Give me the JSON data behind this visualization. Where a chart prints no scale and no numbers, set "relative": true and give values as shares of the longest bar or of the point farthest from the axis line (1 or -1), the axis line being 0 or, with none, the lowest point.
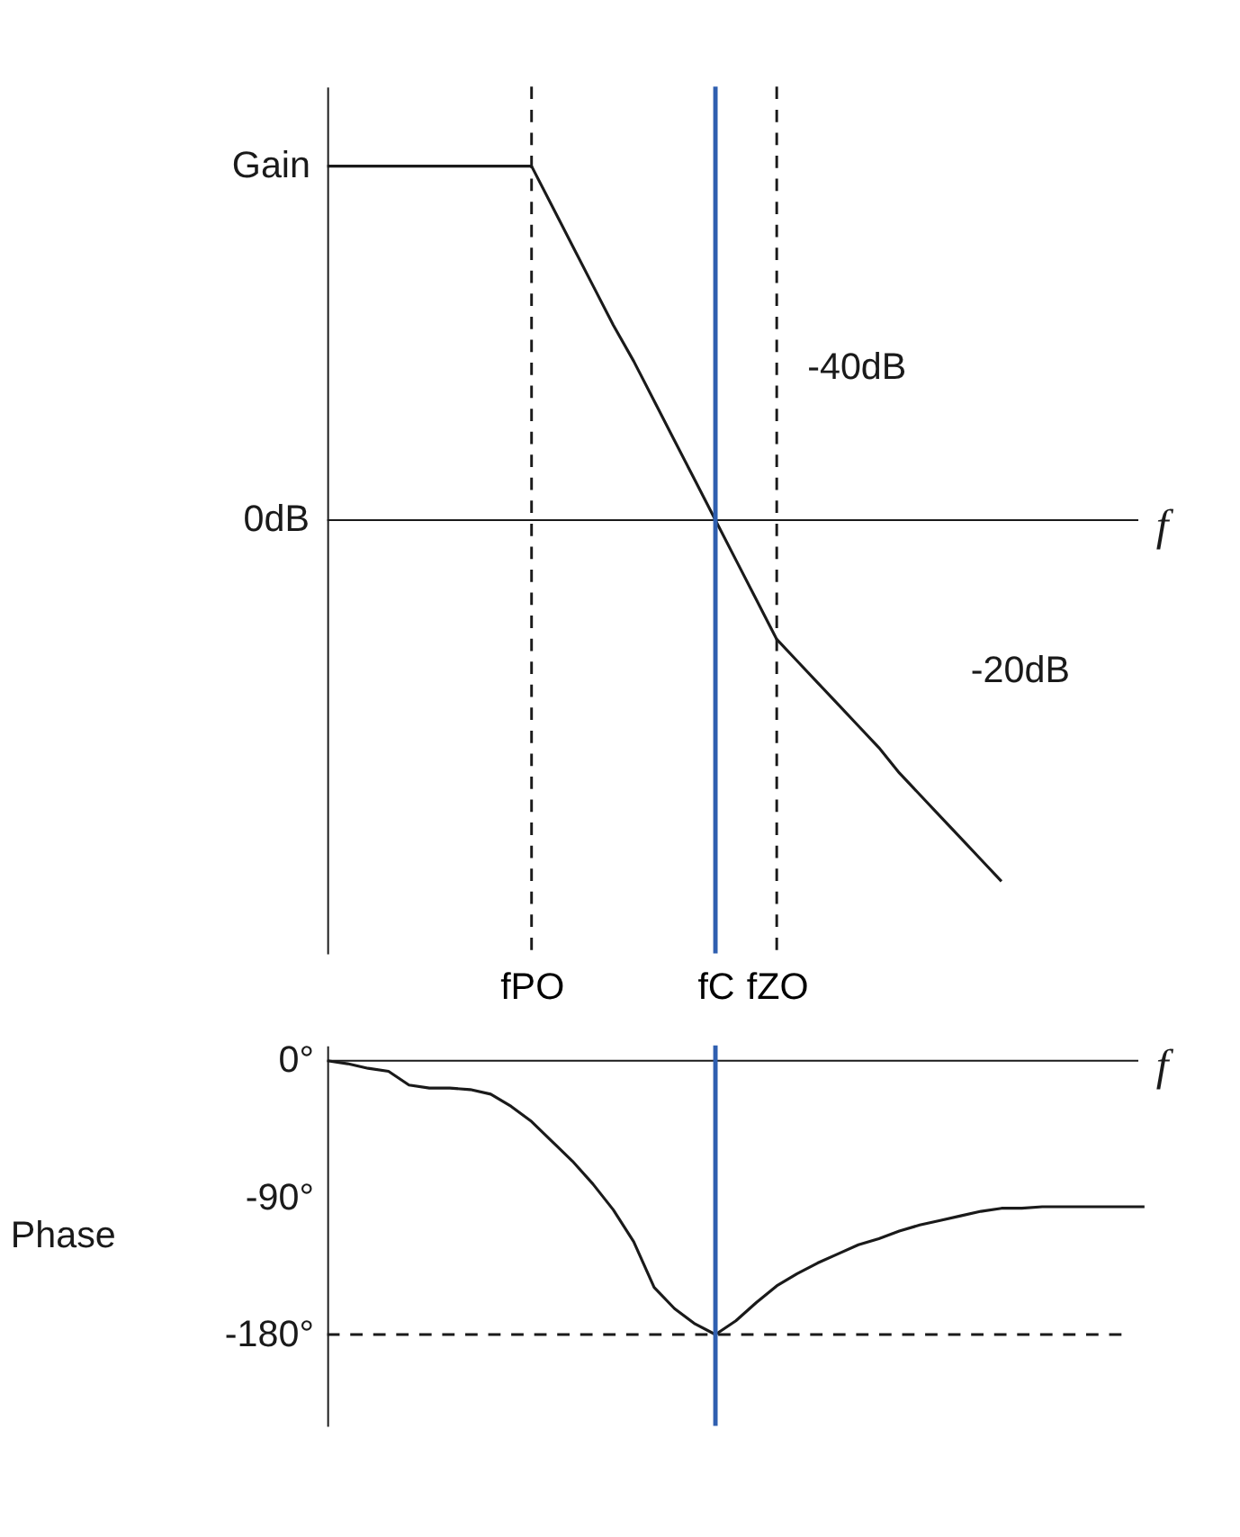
{
  "chart_data": [
    {
      "type": "line",
      "relative": true,
      "xlabel": "f",
      "ylabel": "Gain",
      "categories": [
        null,
        null,
        null,
        null,
        null,
        null,
        null,
        null,
        null,
        null,
        "fPO",
        null,
        null,
        null,
        null,
        null,
        null,
        null,
        null,
        "fC",
        null,
        null,
        "fZO",
        null,
        null,
        null,
        null,
        null,
        null,
        null,
        null,
        null,
        null,
        null,
        null,
        null,
        null,
        null,
        null,
        null,
        null
      ],
      "series": [
        {
          "color": "#1a1a1a",
          "values": [
            0.98,
            0.98,
            0.98,
            0.98,
            0.98,
            0.98,
            0.98,
            0.98,
            0.98,
            0.98,
            0.98,
            0.87,
            0.76,
            0.65,
            0.54,
            0.44,
            0.33,
            0.22,
            0.11,
            0,
            -0.11,
            -0.22,
            -0.33,
            -0.39,
            -0.45,
            -0.51,
            -0.57,
            -0.63,
            -0.7,
            -0.76,
            -0.82,
            -0.88,
            -0.94,
            -1.0,
            null,
            null,
            null,
            null,
            null,
            null,
            null
          ]
        }
      ],
      "ref_lines": [
        {
          "axis": "x",
          "value": "fPO",
          "color": "#1a1a1a",
          "line_style": "dashed"
        },
        {
          "axis": "x",
          "value": "fZO",
          "color": "#1a1a1a",
          "line_style": "dashed"
        },
        {
          "axis": "x",
          "value": "fC",
          "color": "#2f5fb0",
          "line_style": "solid"
        }
      ],
      "annotations": [
        "0dB",
        "-40dB",
        "-20dB"
      ],
      "grid": false
    },
    {
      "type": "line",
      "xlabel": "f",
      "ylabel": "Phase",
      "tick_labels": "y",
      "categories": [
        null,
        null,
        null,
        null,
        null,
        null,
        null,
        null,
        null,
        null,
        null,
        null,
        null,
        null,
        null,
        null,
        null,
        null,
        null,
        null,
        null,
        null,
        null,
        null,
        null,
        null,
        null,
        null,
        null,
        null,
        null,
        null,
        null,
        null,
        null,
        null,
        null,
        null,
        null,
        null,
        null
      ],
      "series": [
        {
          "color": "#1a1a1a",
          "values": [
            0,
            -2,
            -5,
            -7,
            -16,
            -18,
            -18,
            -19,
            -22,
            -30,
            -40,
            -53,
            -66,
            -81,
            -98,
            -119,
            -149,
            -163,
            -173,
            -180,
            -171,
            -159,
            -148,
            -140,
            -133,
            -127,
            -121,
            -117,
            -112,
            -108,
            -105,
            -102,
            -99,
            -97,
            -97,
            -96,
            -96,
            -96,
            -96,
            -96,
            -96
          ]
        }
      ],
      "ylim": [
        -240,
        10
      ],
      "yticks": [
        {
          "value": 0,
          "label": "0°"
        },
        {
          "value": -90,
          "label": "-90°"
        },
        {
          "value": -180,
          "label": "-180°"
        }
      ],
      "ref_lines": [
        {
          "axis": "y",
          "value": -180,
          "color": "#1a1a1a",
          "line_style": "dashed"
        }
      ],
      "grid": false
    }
  ]
}
